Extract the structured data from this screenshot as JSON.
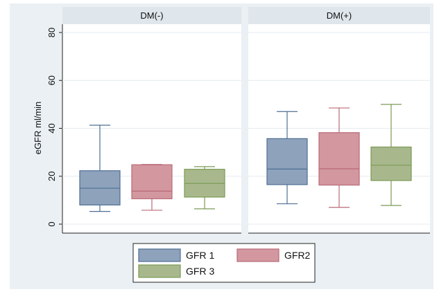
{
  "chart_data": {
    "type": "boxplot",
    "ylabel": "eGFR ml/min",
    "ylim": [
      -4,
      85
    ],
    "yticks": [
      0,
      20,
      40,
      60,
      80
    ],
    "grid": true,
    "legend_placement": "bottom",
    "panels": [
      {
        "title": "DM(-)",
        "boxes": [
          {
            "series": "GFR 1",
            "min": 5.3,
            "q1": 8,
            "median": 15,
            "q3": 22.3,
            "max": 41.3
          },
          {
            "series": "GFR2",
            "min": 5.8,
            "q1": 10.6,
            "median": 13.8,
            "q3": 24.8,
            "max": 24.9
          },
          {
            "series": "GFR 3",
            "min": 6.4,
            "q1": 11.3,
            "median": 17,
            "q3": 22.9,
            "max": 24
          }
        ]
      },
      {
        "title": "DM(+)",
        "boxes": [
          {
            "series": "GFR 1",
            "min": 8.5,
            "q1": 16.5,
            "median": 23,
            "q3": 35.7,
            "max": 47
          },
          {
            "series": "GFR2",
            "min": 7,
            "q1": 16.3,
            "median": 23.1,
            "q3": 38.2,
            "max": 48.5
          },
          {
            "series": "GFR 3",
            "min": 7.8,
            "q1": 18.2,
            "median": 24.6,
            "q3": 32.2,
            "max": 50
          }
        ]
      }
    ],
    "series": [
      {
        "name": "GFR 1",
        "fill": "#8ea2bc",
        "stroke": "#4d6f92"
      },
      {
        "name": "GFR2",
        "fill": "#d3979f",
        "stroke": "#b86a77"
      },
      {
        "name": "GFR 3",
        "fill": "#a8b88c",
        "stroke": "#7b9a55"
      }
    ]
  }
}
